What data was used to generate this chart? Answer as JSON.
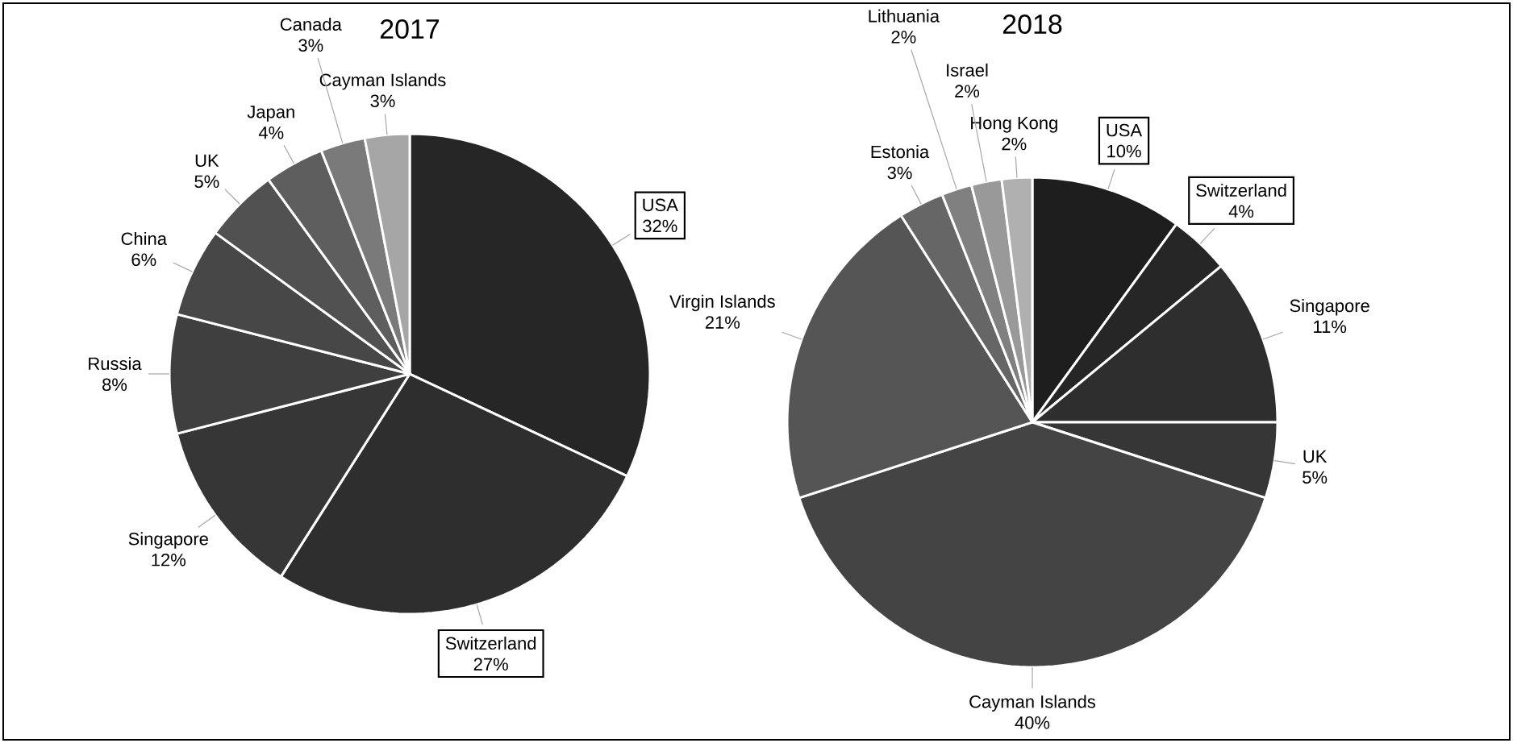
{
  "chart_data": [
    {
      "type": "pie",
      "title": "2017",
      "categories": [
        "USA",
        "Switzerland",
        "Singapore",
        "Russia",
        "China",
        "UK",
        "Japan",
        "Canada",
        "Cayman Islands"
      ],
      "values": [
        32,
        27,
        12,
        8,
        6,
        5,
        4,
        3,
        3
      ],
      "value_labels": [
        "32%",
        "27%",
        "12%",
        "8%",
        "6%",
        "5%",
        "4%",
        "3%",
        "3%"
      ],
      "colors": [
        "#262626",
        "#2e2e2e",
        "#363636",
        "#3f3f3f",
        "#474747",
        "#515151",
        "#5e5e5e",
        "#7a7a7a",
        "#a6a6a6"
      ]
    },
    {
      "type": "pie",
      "title": "2018",
      "categories": [
        "USA",
        "Switzerland",
        "Singapore",
        "UK",
        "Cayman Islands",
        "Virgin Islands",
        "Estonia",
        "Lithuania",
        "Israel",
        "Hong Kong"
      ],
      "values": [
        10,
        4,
        11,
        5,
        40,
        21,
        3,
        2,
        2,
        2
      ],
      "value_labels": [
        "10%",
        "4%",
        "11%",
        "5%",
        "40%",
        "21%",
        "3%",
        "2%",
        "2%",
        "2%"
      ],
      "colors": [
        "#1e1e1e",
        "#262626",
        "#2e2e2e",
        "#363636",
        "#444444",
        "#555555",
        "#666666",
        "#808080",
        "#999999",
        "#b0b0b0"
      ]
    }
  ]
}
